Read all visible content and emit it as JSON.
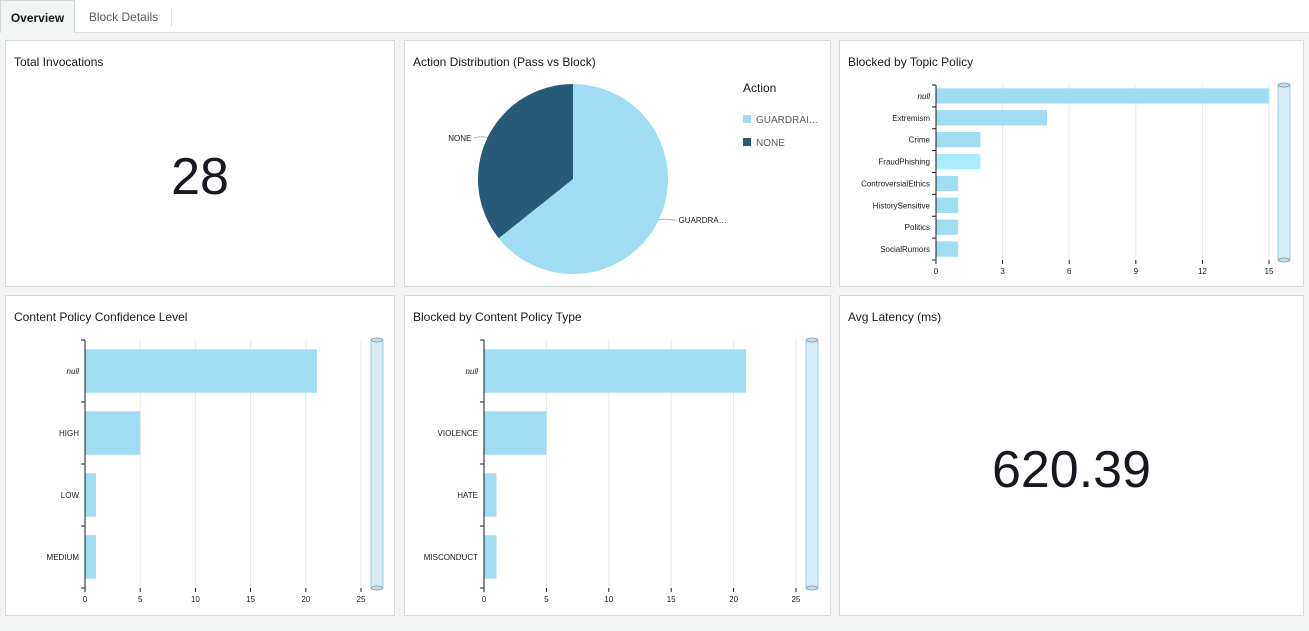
{
  "tabs": [
    {
      "label": "Overview",
      "active": true
    },
    {
      "label": "Block Details",
      "active": false
    }
  ],
  "colors": {
    "bar": "#a0dcf2",
    "bar_highlight": "#a9ecfb",
    "pie_light": "#a0dcf2",
    "pie_dark": "#265a77",
    "axis": "#16191f",
    "grid": "#e7e7e7",
    "scrollbar": "#d7ecf6"
  },
  "panels": {
    "total_invocations": {
      "title": "Total Invocations",
      "value": "28"
    },
    "action_distribution": {
      "title": "Action Distribution (Pass vs Block)"
    },
    "topic_policy": {
      "title": "Blocked by Topic Policy"
    },
    "confidence_level": {
      "title": "Content Policy Confidence Level"
    },
    "content_policy_type": {
      "title": "Blocked by Content Policy Type"
    },
    "avg_latency": {
      "title": "Avg Latency (ms)",
      "value": "620.39"
    }
  },
  "chart_data": [
    {
      "id": "action_distribution",
      "type": "pie",
      "legend_title": "Action",
      "legend_position": "right",
      "slices": [
        {
          "label": "GUARDRAI…",
          "slice_label": "GUARDRA…",
          "value": 18,
          "color": "#a0dcf2"
        },
        {
          "label": "NONE",
          "slice_label": "NONE",
          "value": 10,
          "color": "#265a77"
        }
      ]
    },
    {
      "id": "topic_policy",
      "type": "bar",
      "orientation": "horizontal",
      "categories": [
        "null",
        "Extremism",
        "Crime",
        "FraudPhishing",
        "ControversialEthics",
        "HistorySensitive",
        "Politics",
        "SocialRumors"
      ],
      "values": [
        15,
        5,
        2,
        2,
        1,
        1,
        1,
        1
      ],
      "highlight_index": 3,
      "xlim": [
        0,
        15
      ],
      "xticks": [
        0,
        3,
        6,
        9,
        12,
        15
      ],
      "grid": true
    },
    {
      "id": "confidence_level",
      "type": "bar",
      "orientation": "horizontal",
      "categories": [
        "null",
        "HIGH",
        "LOW",
        "MEDIUM"
      ],
      "values": [
        21,
        5,
        1,
        1
      ],
      "xlim": [
        0,
        25
      ],
      "xticks": [
        0,
        5,
        10,
        15,
        20,
        25
      ],
      "grid": true
    },
    {
      "id": "content_policy_type",
      "type": "bar",
      "orientation": "horizontal",
      "categories": [
        "null",
        "VIOLENCE",
        "HATE",
        "MISCONDUCT"
      ],
      "values": [
        21,
        5,
        1,
        1
      ],
      "xlim": [
        0,
        25
      ],
      "xticks": [
        0,
        5,
        10,
        15,
        20,
        25
      ],
      "grid": true
    }
  ]
}
